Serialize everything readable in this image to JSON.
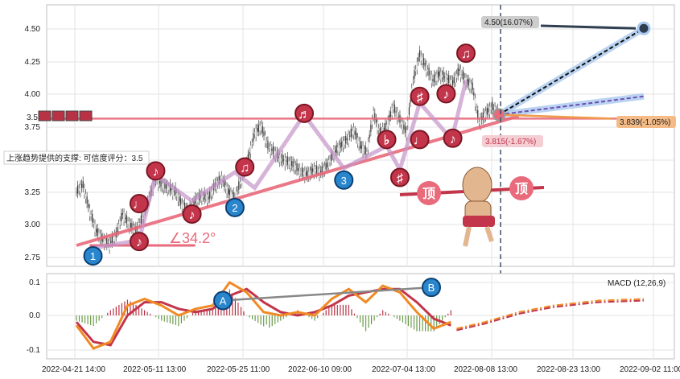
{
  "chart_data": [
    {
      "type": "candlestick",
      "title": "",
      "ylim": [
        2.68,
        4.68
      ],
      "y_ticks": [
        "4.50",
        "4.25",
        "4.00",
        "3.75",
        "3.50",
        "3.25",
        "3.00",
        "2.75"
      ],
      "x_ticks": [
        "2022-04-21 14:00",
        "2022-05-11 13:00",
        "2022-05-25 11:00",
        "2022-06-10 09:00",
        "2022-07-04 13:00",
        "2022-08-08 13:00",
        "2022-08-23 13:00",
        "2022-09-02 11:00"
      ],
      "x_range": [
        0,
        100
      ],
      "price_path": [
        [
          0,
          3.25
        ],
        [
          1,
          3.3
        ],
        [
          2,
          3.1
        ],
        [
          3,
          2.95
        ],
        [
          4,
          2.88
        ],
        [
          5,
          2.85
        ],
        [
          6,
          2.92
        ],
        [
          7,
          3.08
        ],
        [
          8,
          3.0
        ],
        [
          9,
          2.95
        ],
        [
          10,
          3.05
        ],
        [
          11,
          3.2
        ],
        [
          12,
          3.35
        ],
        [
          13,
          3.3
        ],
        [
          14,
          3.28
        ],
        [
          15,
          3.25
        ],
        [
          16,
          3.15
        ],
        [
          17,
          3.1
        ],
        [
          18,
          3.18
        ],
        [
          19,
          3.22
        ],
        [
          20,
          3.2
        ],
        [
          21,
          3.3
        ],
        [
          22,
          3.35
        ],
        [
          23,
          3.25
        ],
        [
          24,
          3.2
        ],
        [
          25,
          3.35
        ],
        [
          26,
          3.5
        ],
        [
          27,
          3.7
        ],
        [
          28,
          3.75
        ],
        [
          29,
          3.6
        ],
        [
          30,
          3.55
        ],
        [
          31,
          3.5
        ],
        [
          32,
          3.48
        ],
        [
          33,
          3.45
        ],
        [
          34,
          3.4
        ],
        [
          35,
          3.38
        ],
        [
          36,
          3.42
        ],
        [
          37,
          3.4
        ],
        [
          38,
          3.45
        ],
        [
          39,
          3.55
        ],
        [
          40,
          3.6
        ],
        [
          41,
          3.65
        ],
        [
          42,
          3.72
        ],
        [
          43,
          3.6
        ],
        [
          44,
          3.55
        ],
        [
          45,
          3.85
        ],
        [
          46,
          3.7
        ],
        [
          47,
          3.75
        ],
        [
          48,
          3.9
        ],
        [
          49,
          3.8
        ],
        [
          50,
          3.7
        ],
        [
          51,
          4.1
        ],
        [
          52,
          4.3
        ],
        [
          53,
          4.2
        ],
        [
          54,
          4.1
        ],
        [
          55,
          4.15
        ],
        [
          56,
          4.12
        ],
        [
          57,
          4.08
        ],
        [
          58,
          4.18
        ],
        [
          59,
          4.1
        ],
        [
          60,
          4.05
        ],
        [
          61,
          3.78
        ],
        [
          62,
          3.85
        ],
        [
          63,
          3.9
        ],
        [
          64,
          3.84
        ]
      ],
      "price_x_max": 64,
      "support_line": {
        "from": [
          0,
          2.84
        ],
        "to": [
          67,
          3.83
        ]
      },
      "resistance_line": {
        "from": [
          -5,
          3.81
        ],
        "to": [
          86,
          3.81
        ]
      },
      "angle_label": "∠34.2°",
      "support_label": "上涨趋势提供的支撑: 可信度评分：3.5",
      "left_value_label": "3.5",
      "forecast_high": {
        "label": "4.50(16.07%)",
        "value": 4.5
      },
      "forecast_mid": {
        "label": "3.839(-1.05%)",
        "value": 3.839
      },
      "forecast_low": {
        "label": "3.815(-1.67%)",
        "value": 3.815
      },
      "wave_points": [
        {
          "label": "1",
          "x": 2.5,
          "y": 2.76
        },
        {
          "label": "2",
          "x": 24,
          "y": 3.13
        },
        {
          "label": "3",
          "x": 40.5,
          "y": 3.34
        }
      ],
      "note_points": [
        {
          "glyph": "♪",
          "x": 9.5,
          "y": 2.87
        },
        {
          "glyph": "♩",
          "x": 9.5,
          "y": 3.16
        },
        {
          "glyph": "♪",
          "x": 12,
          "y": 3.41
        },
        {
          "glyph": "♪",
          "x": 17.5,
          "y": 3.08
        },
        {
          "glyph": "♫",
          "x": 25.5,
          "y": 3.44
        },
        {
          "glyph": "♬",
          "x": 34.5,
          "y": 3.85
        },
        {
          "glyph": "♭",
          "x": 47,
          "y": 3.65
        },
        {
          "glyph": "♯",
          "x": 49,
          "y": 3.36
        },
        {
          "glyph": "♩",
          "x": 52,
          "y": 3.65
        },
        {
          "glyph": "♯",
          "x": 52,
          "y": 3.98
        },
        {
          "glyph": "♪",
          "x": 56,
          "y": 4.0
        },
        {
          "glyph": "♪",
          "x": 57,
          "y": 3.66
        },
        {
          "glyph": "♫",
          "x": 59,
          "y": 4.31
        }
      ],
      "top_labels": [
        "顶",
        "顶"
      ]
    },
    {
      "type": "macd",
      "legend": "MACD (12,26,9)",
      "ylim": [
        -0.13,
        0.13
      ],
      "y_ticks": [
        "0.1",
        "0.0",
        "-0.1"
      ],
      "macd_line": [
        [
          0,
          -0.03
        ],
        [
          3,
          -0.1
        ],
        [
          6,
          -0.08
        ],
        [
          9,
          0.03
        ],
        [
          12,
          0.05
        ],
        [
          15,
          0.03
        ],
        [
          18,
          0.0
        ],
        [
          21,
          0.02
        ],
        [
          24,
          0.03
        ],
        [
          27,
          0.1
        ],
        [
          30,
          0.07
        ],
        [
          33,
          0.01
        ],
        [
          36,
          0.0
        ],
        [
          39,
          0.01
        ],
        [
          42,
          0.0
        ],
        [
          45,
          0.05
        ],
        [
          48,
          0.08
        ],
        [
          51,
          0.04
        ],
        [
          54,
          0.09
        ],
        [
          57,
          0.07
        ],
        [
          60,
          0.01
        ],
        [
          63,
          -0.04
        ],
        [
          66,
          -0.02
        ]
      ],
      "signal_line": [
        [
          0,
          -0.02
        ],
        [
          3,
          -0.08
        ],
        [
          6,
          -0.09
        ],
        [
          9,
          0.0
        ],
        [
          12,
          0.04
        ],
        [
          15,
          0.04
        ],
        [
          18,
          0.02
        ],
        [
          21,
          0.01
        ],
        [
          24,
          0.02
        ],
        [
          27,
          0.06
        ],
        [
          30,
          0.08
        ],
        [
          33,
          0.04
        ],
        [
          36,
          0.01
        ],
        [
          39,
          0.0
        ],
        [
          42,
          0.01
        ],
        [
          45,
          0.03
        ],
        [
          48,
          0.06
        ],
        [
          51,
          0.07
        ],
        [
          54,
          0.08
        ],
        [
          57,
          0.08
        ],
        [
          60,
          0.04
        ],
        [
          63,
          -0.01
        ],
        [
          66,
          -0.03
        ]
      ],
      "projection": [
        [
          67,
          -0.04
        ],
        [
          72,
          -0.02
        ],
        [
          78,
          0.01
        ],
        [
          84,
          0.03
        ],
        [
          92,
          0.045
        ],
        [
          100,
          0.05
        ]
      ],
      "divergence_labels": [
        {
          "label": "A",
          "x": 24,
          "y": 0.04
        },
        {
          "label": "B",
          "x": 60,
          "y": 0.08
        }
      ]
    }
  ]
}
